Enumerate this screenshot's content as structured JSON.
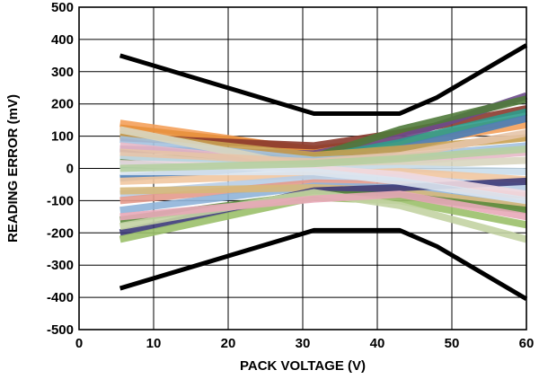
{
  "chart_data": {
    "type": "line",
    "title": "",
    "xlabel": "PACK VOLTAGE (V)",
    "ylabel": "READING ERROR (mV)",
    "xlim": [
      0,
      60
    ],
    "ylim": [
      -500,
      500
    ],
    "x_ticks": [
      "0",
      "10",
      "20",
      "30",
      "40",
      "50",
      "60"
    ],
    "y_ticks": [
      "-500",
      "-400",
      "-300",
      "-200",
      "-100",
      "0",
      "100",
      "200",
      "300",
      "400",
      "500"
    ],
    "grid": true,
    "legend": "none",
    "limit_lines": {
      "color": "#000000",
      "upper": {
        "x": [
          5.5,
          31.5,
          43,
          48,
          60
        ],
        "y": [
          350,
          170,
          170,
          220,
          382
        ]
      },
      "lower": {
        "x": [
          5.5,
          31.5,
          43,
          48,
          60
        ],
        "y": [
          -372,
          -192,
          -192,
          -242,
          -405
        ]
      }
    },
    "error_curves": {
      "x": [
        5.5,
        31.5,
        43,
        60
      ],
      "series": [
        {
          "color": "#F4A05A",
          "values": [
            140,
            55,
            75,
            135
          ]
        },
        {
          "color": "#E8903C",
          "values": [
            125,
            60,
            85,
            155
          ]
        },
        {
          "color": "#8B3A2E",
          "values": [
            95,
            70,
            110,
            185
          ]
        },
        {
          "color": "#6B4A8C",
          "values": [
            60,
            45,
            95,
            225
          ]
        },
        {
          "color": "#4F7A3A",
          "values": [
            30,
            35,
            120,
            215
          ]
        },
        {
          "color": "#2E9C8C",
          "values": [
            10,
            30,
            80,
            175
          ]
        },
        {
          "color": "#4A7EB8",
          "values": [
            -30,
            15,
            60,
            155
          ]
        },
        {
          "color": "#C8A050",
          "values": [
            105,
            40,
            60,
            95
          ]
        },
        {
          "color": "#A4C2E0",
          "values": [
            90,
            25,
            35,
            70
          ]
        },
        {
          "color": "#E7B9C8",
          "values": [
            70,
            10,
            20,
            50
          ]
        },
        {
          "color": "#D9D6C0",
          "values": [
            120,
            0,
            10,
            25
          ]
        },
        {
          "color": "#C9DDEB",
          "values": [
            40,
            -5,
            0,
            -10
          ]
        },
        {
          "color": "#F1C6A0",
          "values": [
            -40,
            -20,
            -10,
            -35
          ]
        },
        {
          "color": "#B8CDE6",
          "values": [
            -80,
            -30,
            -30,
            -60
          ]
        },
        {
          "color": "#E49A8C",
          "values": [
            -100,
            -45,
            -50,
            -85
          ]
        },
        {
          "color": "#8FB4D9",
          "values": [
            -130,
            -55,
            -60,
            -110
          ]
        },
        {
          "color": "#D6B87A",
          "values": [
            -70,
            -60,
            -70,
            -120
          ]
        },
        {
          "color": "#3C3A78",
          "values": [
            -200,
            -70,
            -60,
            -40
          ]
        },
        {
          "color": "#5A8A3C",
          "values": [
            -160,
            -80,
            -85,
            -130
          ]
        },
        {
          "color": "#9BC06A",
          "values": [
            -220,
            -90,
            -100,
            -175
          ]
        },
        {
          "color": "#C3D3A3",
          "values": [
            -180,
            -75,
            -115,
            -220
          ]
        },
        {
          "color": "#E8A8B8",
          "values": [
            -150,
            -95,
            -80,
            -150
          ]
        },
        {
          "color": "#F0D9E0",
          "values": [
            15,
            0,
            -20,
            -80
          ]
        },
        {
          "color": "#DCE6F0",
          "values": [
            -10,
            -10,
            -40,
            -100
          ]
        },
        {
          "color": "#E6C4A8",
          "values": [
            50,
            20,
            40,
            110
          ]
        },
        {
          "color": "#B5CFA0",
          "values": [
            0,
            15,
            30,
            60
          ]
        }
      ]
    }
  }
}
